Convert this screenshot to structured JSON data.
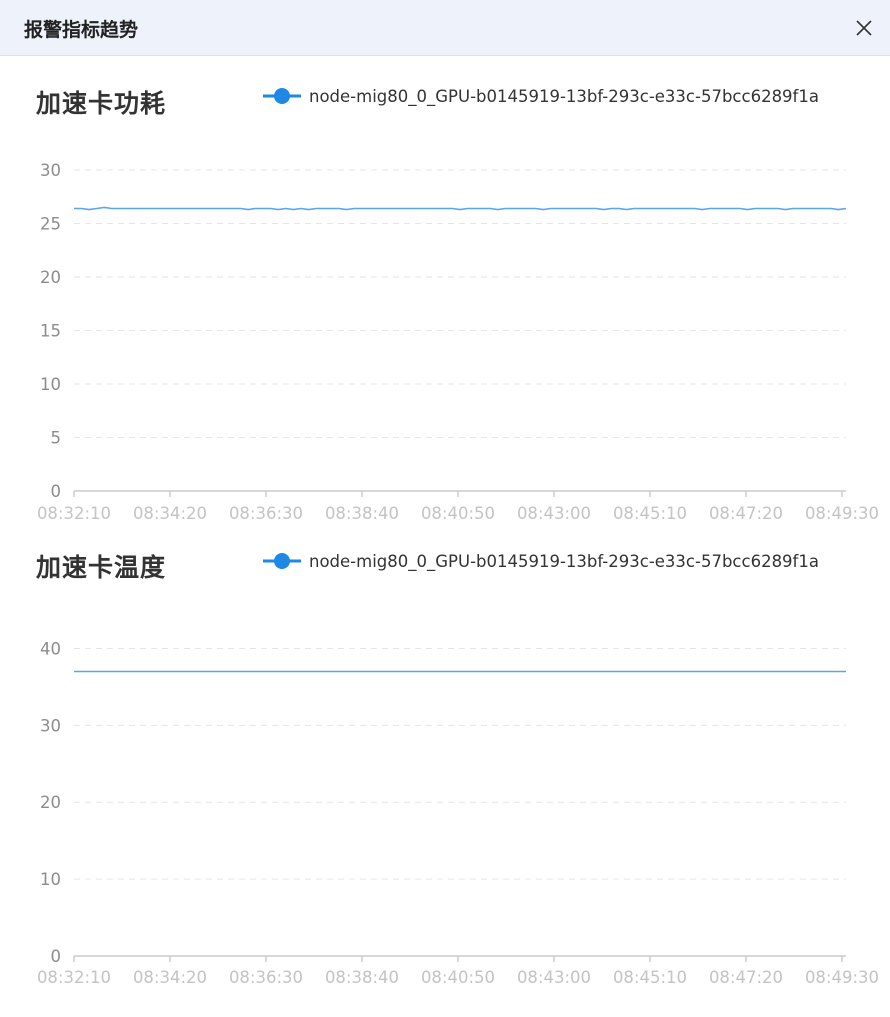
{
  "dialog": {
    "title": "报警指标趋势",
    "close_icon": "close-icon"
  },
  "colors": {
    "series": "#1e88e5",
    "grid": "#e3e6eb",
    "axis": "#cccccc",
    "y_tick_text": "#8c8c8c",
    "x_tick_text": "#c4c4c4",
    "header_bg": "#eef2fa"
  },
  "chart_data": [
    {
      "type": "line",
      "title": "加速卡功耗",
      "legend_position": "top-right",
      "grid": true,
      "x_ticks": [
        "08:32:10",
        "08:34:20",
        "08:36:30",
        "08:38:40",
        "08:40:50",
        "08:43:00",
        "08:45:10",
        "08:47:20",
        "08:49:30"
      ],
      "ylim": [
        0,
        30
      ],
      "y_ticks": [
        "0",
        "5",
        "10",
        "15",
        "20",
        "25",
        "30"
      ],
      "series": [
        {
          "name": "node-mig80_0_GPU-b0145919-13bf-293c-e33c-57bcc6289f1a",
          "values": [
            26.4,
            26.4,
            26.3,
            26.4,
            26.5,
            26.4,
            26.4,
            26.4,
            26.4,
            26.4,
            26.4,
            26.4,
            26.4,
            26.4,
            26.4,
            26.4,
            26.4,
            26.4,
            26.4,
            26.4,
            26.4,
            26.4,
            26.4,
            26.3,
            26.4,
            26.4,
            26.4,
            26.3,
            26.4,
            26.3,
            26.4,
            26.3,
            26.4,
            26.4,
            26.4,
            26.4,
            26.3,
            26.4,
            26.4,
            26.4,
            26.4,
            26.4,
            26.4,
            26.4,
            26.4,
            26.4,
            26.4,
            26.4,
            26.4,
            26.4,
            26.4,
            26.3,
            26.4,
            26.4,
            26.4,
            26.4,
            26.3,
            26.4,
            26.4,
            26.4,
            26.4,
            26.4,
            26.3,
            26.4,
            26.4,
            26.4,
            26.4,
            26.4,
            26.4,
            26.4,
            26.3,
            26.4,
            26.4,
            26.3,
            26.4,
            26.4,
            26.4,
            26.4,
            26.4,
            26.4,
            26.4,
            26.4,
            26.4,
            26.3,
            26.4,
            26.4,
            26.4,
            26.4,
            26.4,
            26.3,
            26.4,
            26.4,
            26.4,
            26.4,
            26.3,
            26.4,
            26.4,
            26.4,
            26.4,
            26.4,
            26.4,
            26.3,
            26.4
          ]
        }
      ]
    },
    {
      "type": "line",
      "title": "加速卡温度",
      "legend_position": "top-right",
      "grid": true,
      "x_ticks": [
        "08:32:10",
        "08:34:20",
        "08:36:30",
        "08:38:40",
        "08:40:50",
        "08:43:00",
        "08:45:10",
        "08:47:20",
        "08:49:30"
      ],
      "ylim": [
        0,
        45
      ],
      "y_ticks": [
        "0",
        "10",
        "20",
        "30",
        "40"
      ],
      "series": [
        {
          "name": "node-mig80_0_GPU-b0145919-13bf-293c-e33c-57bcc6289f1a",
          "values": [
            37,
            37,
            37,
            37,
            37,
            37,
            37,
            37,
            37,
            37,
            37,
            37,
            37,
            37,
            37,
            37,
            37,
            37,
            37,
            37,
            37,
            37,
            37,
            37,
            37,
            37,
            37,
            37,
            37,
            37,
            37,
            37,
            37,
            37,
            37,
            37,
            37,
            37,
            37,
            37
          ]
        }
      ]
    }
  ]
}
